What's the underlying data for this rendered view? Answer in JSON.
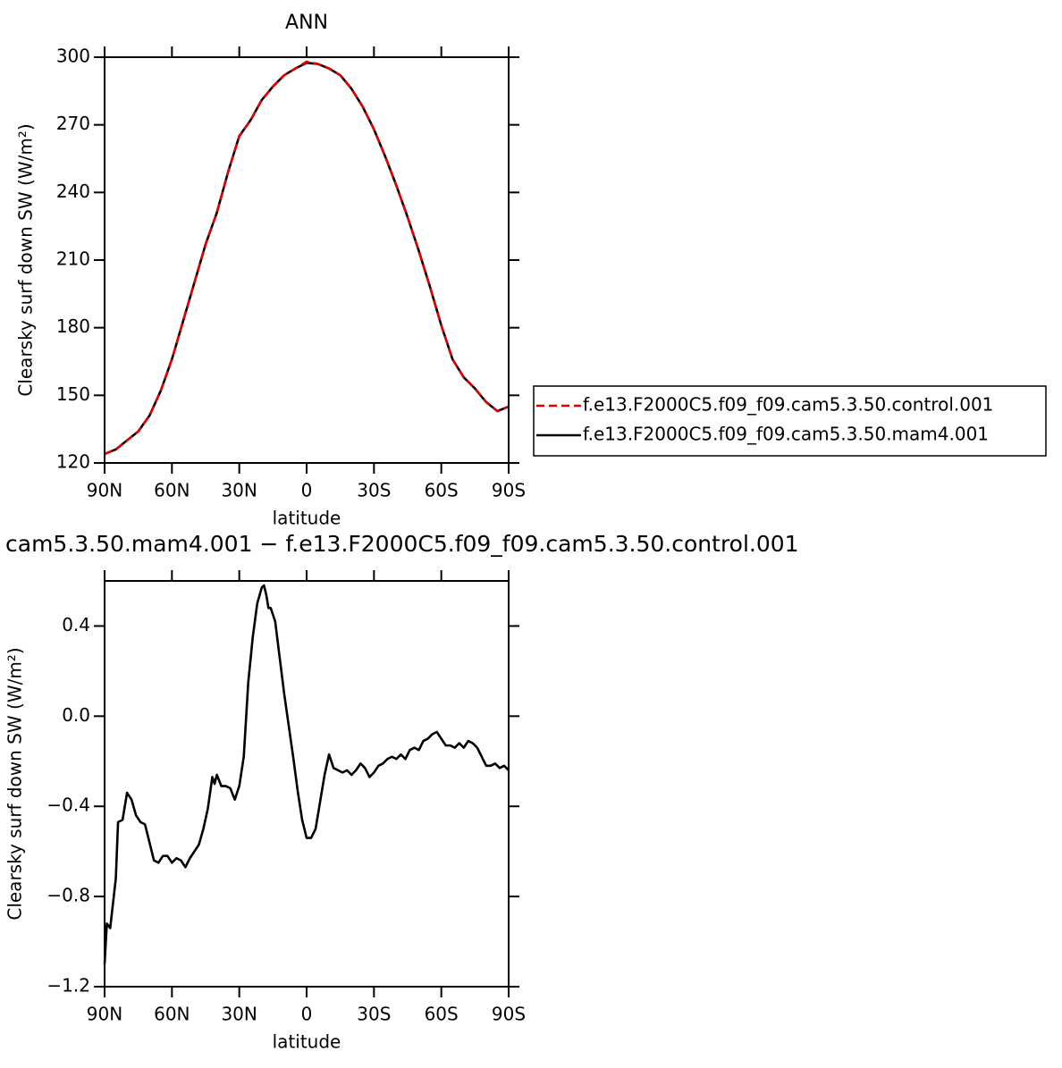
{
  "chart_data": [
    {
      "type": "line",
      "title": "ANN",
      "xlabel": "latitude",
      "ylabel": "Clearsky surf down SW (W/m²)",
      "x": [
        90,
        85,
        80,
        75,
        70,
        65,
        60,
        55,
        50,
        45,
        40,
        35,
        30,
        25,
        20,
        15,
        10,
        5,
        0,
        -5,
        -10,
        -15,
        -20,
        -25,
        -30,
        -35,
        -40,
        -45,
        -50,
        -55,
        -60,
        -65,
        -70,
        -75,
        -80,
        -85,
        -90
      ],
      "series": [
        {
          "name": "f.e13.F2000C5.f09_f09.cam5.3.50.control.001",
          "color": "#e00000",
          "linestyle": "dashed",
          "values": [
            124,
            126,
            130,
            134,
            141,
            152,
            166,
            183,
            200,
            217,
            231,
            249,
            265,
            272,
            281,
            287,
            292,
            295,
            298,
            297,
            295,
            292,
            286,
            278,
            268,
            256,
            243,
            229,
            214,
            198,
            181,
            166,
            158,
            153,
            147,
            143,
            145
          ]
        },
        {
          "name": "f.e13.F2000C5.f09_f09.cam5.3.50.mam4.001",
          "color": "#000000",
          "linestyle": "solid",
          "values": [
            124,
            126,
            130,
            134,
            141,
            152,
            166,
            183,
            200,
            217,
            231,
            249,
            265,
            272,
            281,
            287,
            292,
            295,
            297.5,
            297,
            295,
            292,
            286,
            278,
            268,
            256,
            243,
            229,
            214,
            198,
            181,
            166,
            158,
            153,
            147,
            143,
            145
          ]
        }
      ],
      "xlim": [
        90,
        -90
      ],
      "xticks": [
        {
          "value": 90,
          "label": "90N"
        },
        {
          "value": 60,
          "label": "60N"
        },
        {
          "value": 30,
          "label": "30N"
        },
        0,
        {
          "value": -30,
          "label": "30S"
        },
        {
          "value": -60,
          "label": "60S"
        },
        {
          "value": -90,
          "label": "90S"
        }
      ],
      "ylim": [
        120,
        300
      ],
      "yticks": [
        120,
        150,
        180,
        210,
        240,
        270,
        300
      ],
      "legend": "right"
    },
    {
      "type": "line",
      "title": "cam5.3.50.mam4.001 − f.e13.F2000C5.f09_f09.cam5.3.50.control.001",
      "xlabel": "latitude",
      "ylabel": "Clearsky surf down SW (W/m²)",
      "x": [
        90,
        89,
        87.5,
        85,
        84,
        82,
        80,
        78,
        76,
        74,
        72,
        70,
        68,
        66,
        64,
        62,
        60,
        58,
        56,
        54,
        52,
        50,
        48,
        46,
        44,
        42,
        41,
        40,
        38,
        36,
        34,
        32,
        30,
        28,
        26,
        24,
        22,
        20,
        19,
        18,
        17,
        16,
        14,
        12,
        10,
        8,
        6,
        4,
        2,
        0,
        -2,
        -4,
        -6,
        -8,
        -10,
        -12,
        -14,
        -16,
        -18,
        -20,
        -22,
        -24,
        -26,
        -28,
        -30,
        -32,
        -34,
        -36,
        -38,
        -40,
        -42,
        -44,
        -46,
        -48,
        -50,
        -52,
        -54,
        -56,
        -58,
        -60,
        -62,
        -64,
        -66,
        -68,
        -70,
        -72,
        -74,
        -76,
        -78,
        -80,
        -82,
        -84,
        -86,
        -88,
        -90
      ],
      "values": [
        -1.1,
        -0.92,
        -0.94,
        -0.72,
        -0.47,
        -0.46,
        -0.34,
        -0.37,
        -0.44,
        -0.47,
        -0.48,
        -0.56,
        -0.64,
        -0.65,
        -0.62,
        -0.62,
        -0.65,
        -0.63,
        -0.64,
        -0.67,
        -0.63,
        -0.6,
        -0.57,
        -0.5,
        -0.41,
        -0.27,
        -0.3,
        -0.26,
        -0.31,
        -0.31,
        -0.32,
        -0.37,
        -0.31,
        -0.18,
        0.15,
        0.35,
        0.5,
        0.57,
        0.58,
        0.54,
        0.48,
        0.48,
        0.42,
        0.26,
        0.1,
        -0.04,
        -0.18,
        -0.33,
        -0.46,
        -0.54,
        -0.54,
        -0.5,
        -0.38,
        -0.26,
        -0.17,
        -0.23,
        -0.24,
        -0.25,
        -0.24,
        -0.26,
        -0.24,
        -0.21,
        -0.23,
        -0.27,
        -0.25,
        -0.22,
        -0.21,
        -0.19,
        -0.18,
        -0.19,
        -0.17,
        -0.19,
        -0.15,
        -0.14,
        -0.15,
        -0.11,
        -0.1,
        -0.08,
        -0.07,
        -0.1,
        -0.13,
        -0.13,
        -0.14,
        -0.12,
        -0.14,
        -0.11,
        -0.12,
        -0.14,
        -0.18,
        -0.22,
        -0.22,
        -0.21,
        -0.23,
        -0.22,
        -0.24
      ],
      "color": "#000000",
      "xlim": [
        90,
        -90
      ],
      "xticks": [
        {
          "value": 90,
          "label": "90N"
        },
        {
          "value": 60,
          "label": "60N"
        },
        {
          "value": 30,
          "label": "30N"
        },
        0,
        {
          "value": -30,
          "label": "30S"
        },
        {
          "value": -60,
          "label": "60S"
        },
        {
          "value": -90,
          "label": "90S"
        }
      ],
      "ylim": [
        -1.2,
        0.6
      ],
      "yticks": [
        {
          "value": -1.2,
          "label": "−1.2"
        },
        {
          "value": -0.8,
          "label": "−0.8"
        },
        {
          "value": -0.4,
          "label": "−0.4"
        },
        {
          "value": 0,
          "label": "0.0"
        },
        {
          "value": 0.4,
          "label": "0.4"
        }
      ]
    }
  ]
}
